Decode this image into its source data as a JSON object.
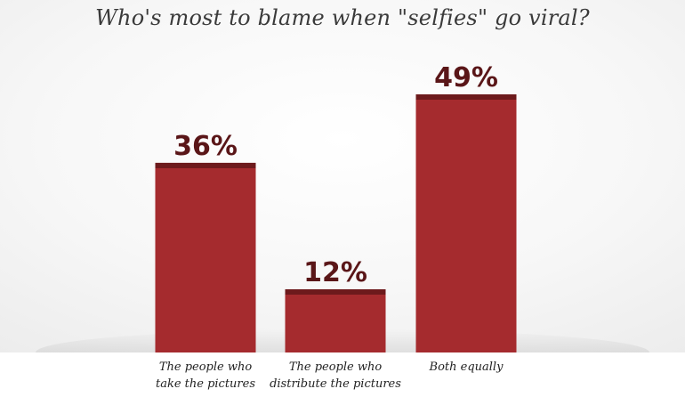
{
  "chart_data": {
    "type": "bar",
    "title": "Who's most to blame when \"selfies\" go viral?",
    "categories": [
      [
        "The people who",
        "take the pictures"
      ],
      [
        "The people who",
        "distribute the pictures"
      ],
      [
        "Both equally"
      ]
    ],
    "values": [
      36,
      12,
      49
    ],
    "value_labels": [
      "36%",
      "12%",
      "49%"
    ],
    "ylim": [
      0,
      55
    ],
    "grid": false,
    "legend": "none",
    "colors": {
      "bar": "#a52b2e",
      "bar_cap": "#6d1a1c",
      "value_label": "#5a1618"
    }
  }
}
